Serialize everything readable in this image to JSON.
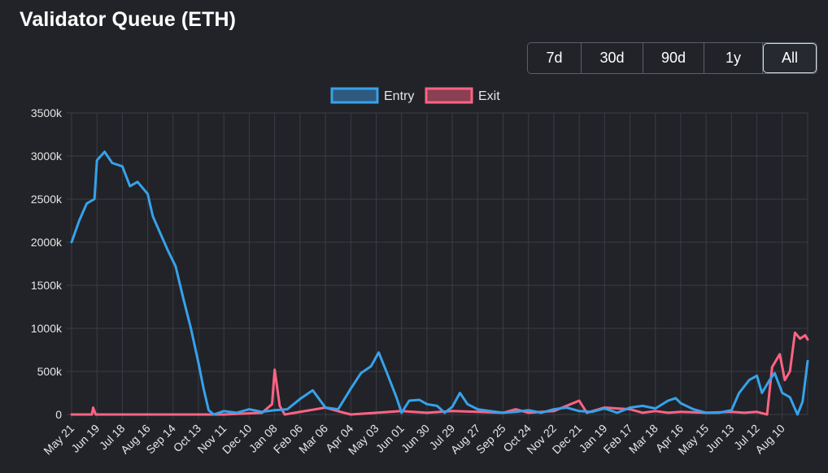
{
  "title": "Validator Queue (ETH)",
  "ranges": [
    "7d",
    "30d",
    "90d",
    "1y",
    "All"
  ],
  "active_range": "All",
  "colors": {
    "background": "#212328",
    "grid": "#3a3d44",
    "text": "#e6e6e6",
    "entry": "#36a2eb",
    "entry_fill": "#2d5a7e",
    "exit": "#ff6384",
    "exit_fill": "#8a3f52"
  },
  "chart_data": {
    "type": "line",
    "title": "",
    "xlabel": "",
    "ylabel": "",
    "ylim": [
      0,
      3500
    ],
    "y_ticks": [
      "0",
      "500k",
      "1000k",
      "1500k",
      "2000k",
      "2500k",
      "3000k",
      "3500k"
    ],
    "x_tick_labels": [
      "May 21",
      "Jun 19",
      "Jul 18",
      "Aug 16",
      "Sep 14",
      "Oct 13",
      "Nov 11",
      "Dec 10",
      "Jan 08",
      "Feb 06",
      "Mar 06",
      "Apr 04",
      "May 03",
      "Jun 01",
      "Jun 30",
      "Jul 29",
      "Aug 27",
      "Sep 25",
      "Oct 24",
      "Nov 22",
      "Dec 21",
      "Jan 19",
      "Feb 17",
      "Mar 18",
      "Apr 16",
      "May 15",
      "Jun 13",
      "Jul 12",
      "Aug 10"
    ],
    "grid": true,
    "legend_position": "top",
    "unit": "k",
    "series": [
      {
        "name": "Entry",
        "color": "#36a2eb",
        "points": [
          [
            0,
            2000
          ],
          [
            0.3,
            2250
          ],
          [
            0.6,
            2450
          ],
          [
            0.9,
            2500
          ],
          [
            1.0,
            2950
          ],
          [
            1.3,
            3050
          ],
          [
            1.6,
            2920
          ],
          [
            2.0,
            2880
          ],
          [
            2.3,
            2650
          ],
          [
            2.6,
            2700
          ],
          [
            3.0,
            2560
          ],
          [
            3.2,
            2300
          ],
          [
            3.5,
            2100
          ],
          [
            3.8,
            1900
          ],
          [
            4.1,
            1720
          ],
          [
            4.4,
            1350
          ],
          [
            4.7,
            1000
          ],
          [
            5.0,
            600
          ],
          [
            5.2,
            300
          ],
          [
            5.4,
            50
          ],
          [
            5.6,
            0
          ],
          [
            6.0,
            40
          ],
          [
            6.5,
            20
          ],
          [
            7.0,
            60
          ],
          [
            7.5,
            30
          ],
          [
            8.0,
            50
          ],
          [
            8.5,
            60
          ],
          [
            9.0,
            180
          ],
          [
            9.5,
            280
          ],
          [
            10.0,
            80
          ],
          [
            10.5,
            60
          ],
          [
            11.0,
            300
          ],
          [
            11.4,
            480
          ],
          [
            11.8,
            560
          ],
          [
            12.1,
            720
          ],
          [
            12.4,
            500
          ],
          [
            12.8,
            200
          ],
          [
            13.0,
            20
          ],
          [
            13.3,
            160
          ],
          [
            13.7,
            170
          ],
          [
            14.0,
            120
          ],
          [
            14.4,
            100
          ],
          [
            14.7,
            20
          ],
          [
            15.0,
            90
          ],
          [
            15.3,
            250
          ],
          [
            15.6,
            120
          ],
          [
            16.0,
            60
          ],
          [
            16.5,
            40
          ],
          [
            17.0,
            20
          ],
          [
            17.5,
            30
          ],
          [
            18.0,
            50
          ],
          [
            18.5,
            20
          ],
          [
            19.0,
            60
          ],
          [
            19.5,
            80
          ],
          [
            20.0,
            40
          ],
          [
            20.5,
            30
          ],
          [
            21.0,
            70
          ],
          [
            21.5,
            20
          ],
          [
            22.0,
            80
          ],
          [
            22.5,
            100
          ],
          [
            23.0,
            70
          ],
          [
            23.5,
            160
          ],
          [
            23.8,
            190
          ],
          [
            24.0,
            130
          ],
          [
            24.5,
            60
          ],
          [
            25.0,
            20
          ],
          [
            25.5,
            20
          ],
          [
            26.0,
            50
          ],
          [
            26.3,
            250
          ],
          [
            26.7,
            400
          ],
          [
            27.0,
            450
          ],
          [
            27.2,
            250
          ],
          [
            27.5,
            400
          ],
          [
            27.7,
            480
          ],
          [
            28.0,
            250
          ],
          [
            28.3,
            200
          ],
          [
            28.6,
            0
          ],
          [
            28.8,
            150
          ],
          [
            29.0,
            620
          ]
        ]
      },
      {
        "name": "Exit",
        "color": "#ff6384",
        "points": [
          [
            0,
            0
          ],
          [
            0.8,
            0
          ],
          [
            0.85,
            80
          ],
          [
            0.95,
            0
          ],
          [
            3.0,
            0
          ],
          [
            6.0,
            0
          ],
          [
            7.5,
            20
          ],
          [
            7.9,
            120
          ],
          [
            8.0,
            520
          ],
          [
            8.2,
            100
          ],
          [
            8.4,
            0
          ],
          [
            10.0,
            80
          ],
          [
            10.6,
            30
          ],
          [
            11.0,
            0
          ],
          [
            13.0,
            40
          ],
          [
            14.0,
            20
          ],
          [
            15.0,
            40
          ],
          [
            16.0,
            30
          ],
          [
            17.0,
            20
          ],
          [
            17.5,
            60
          ],
          [
            18.0,
            20
          ],
          [
            19.0,
            40
          ],
          [
            20.0,
            160
          ],
          [
            20.3,
            20
          ],
          [
            21.0,
            80
          ],
          [
            22.0,
            60
          ],
          [
            22.5,
            20
          ],
          [
            23.0,
            40
          ],
          [
            23.5,
            20
          ],
          [
            24.0,
            30
          ],
          [
            25.0,
            20
          ],
          [
            26.0,
            30
          ],
          [
            26.5,
            20
          ],
          [
            27.0,
            30
          ],
          [
            27.4,
            0
          ],
          [
            27.6,
            550
          ],
          [
            27.9,
            700
          ],
          [
            28.1,
            400
          ],
          [
            28.3,
            500
          ],
          [
            28.5,
            950
          ],
          [
            28.7,
            880
          ],
          [
            28.9,
            920
          ],
          [
            29.0,
            870
          ]
        ]
      }
    ]
  }
}
